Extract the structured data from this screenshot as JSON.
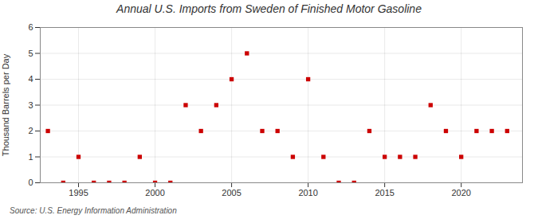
{
  "chart_data": {
    "type": "scatter",
    "title": "Annual U.S. Imports from Sweden of Finished Motor Gasoline",
    "ylabel": "Thousand Barrels per Day",
    "source": "Source: U.S. Energy Information Administration",
    "x": [
      1993,
      1994,
      1995,
      1996,
      1997,
      1998,
      1999,
      2000,
      2001,
      2002,
      2003,
      2004,
      2005,
      2006,
      2007,
      2008,
      2009,
      2010,
      2011,
      2012,
      2013,
      2014,
      2015,
      2016,
      2017,
      2018,
      2019,
      2020,
      2021,
      2022,
      2023
    ],
    "values": [
      2,
      0,
      1,
      0,
      0,
      0,
      1,
      0,
      0,
      3,
      2,
      3,
      4,
      5,
      2,
      2,
      1,
      4,
      1,
      0,
      0,
      2,
      1,
      1,
      1,
      3,
      2,
      1,
      2,
      2,
      2
    ],
    "color": "#cc0000",
    "marker": "square",
    "xlim": [
      1992.5,
      2024
    ],
    "xticks": [
      1995,
      2000,
      2005,
      2010,
      2015,
      2020
    ],
    "ylim": [
      0,
      6
    ],
    "yticks": [
      0,
      1,
      2,
      3,
      4,
      5,
      6
    ],
    "grid": true
  }
}
